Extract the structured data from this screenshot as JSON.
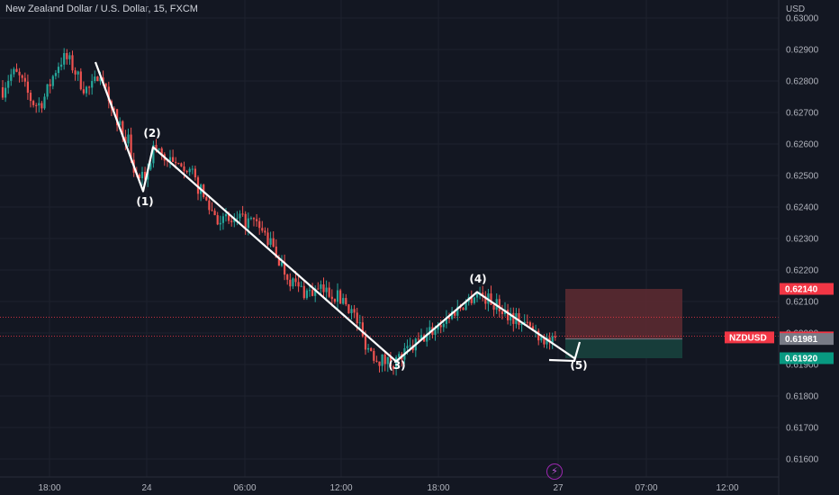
{
  "header": {
    "title": "New Zealand Dollar / U.S. Dollar, 15, FXCM"
  },
  "icons": {
    "alert": "lightning-icon"
  },
  "colors": {
    "background": "#131722",
    "bull": "#26a69a",
    "bear": "#ef5350",
    "wave": "#ffffff",
    "stop_zone": "#5b2a31",
    "target_zone": "#173f3c",
    "grid": "#1e222d"
  },
  "chart_data": {
    "type": "candlestick",
    "title": "New Zealand Dollar / U.S. Dollar, 15, FXCM",
    "y_unit_label": "USD",
    "ylim": [
      0.6152,
      0.6305
    ],
    "y_ticks": [
      "0.63000",
      "0.62900",
      "0.62800",
      "0.62700",
      "0.62600",
      "0.62500",
      "0.62400",
      "0.62300",
      "0.62200",
      "0.62100",
      "0.62000",
      "0.61900",
      "0.61800",
      "0.61700",
      "0.61600"
    ],
    "x_ticks": [
      "18:00",
      "24",
      "06:00",
      "12:00",
      "18:00",
      "27",
      "07:00",
      "12:00"
    ],
    "grid": true,
    "elliott_wave": {
      "labels": [
        "(1)",
        "(2)",
        "(3)",
        "(4)",
        "(5)"
      ],
      "prices": {
        "start": 0.6286,
        "w1": 0.6245,
        "w2": 0.6259,
        "w3": 0.6191,
        "w4": 0.6213,
        "w5": 0.6192
      }
    },
    "position": {
      "entry": 0.61981,
      "stop": 0.6214,
      "target": 0.6192
    },
    "price_tags": [
      {
        "label": "NZDUSD",
        "value": "0.61986",
        "color": "#f23645"
      },
      {
        "label": "",
        "value": "0.62140",
        "color": "#f23645"
      },
      {
        "label": "",
        "value": "0.61981",
        "color": "#787b86"
      },
      {
        "label": "",
        "value": "0.61920",
        "color": "#089981"
      }
    ],
    "horizontal_lines": [
      0.6205,
      0.6199
    ]
  }
}
